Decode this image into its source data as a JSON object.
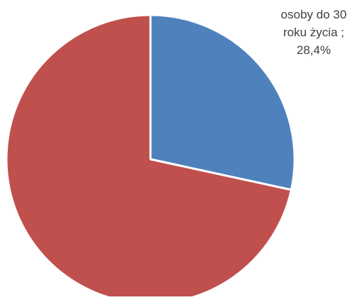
{
  "chart_data": {
    "type": "pie",
    "slices": [
      {
        "name": "osoby do 30 roku życia",
        "value": 28.4,
        "color": "#4F81BD",
        "label_lines": [
          "osoby do 30",
          "roku życia ;",
          "28,4%"
        ]
      },
      {
        "name": "",
        "value": 71.6,
        "color": "#C0504D"
      }
    ],
    "start_angle_deg": 0,
    "direction": "clockwise",
    "legend": "none"
  }
}
